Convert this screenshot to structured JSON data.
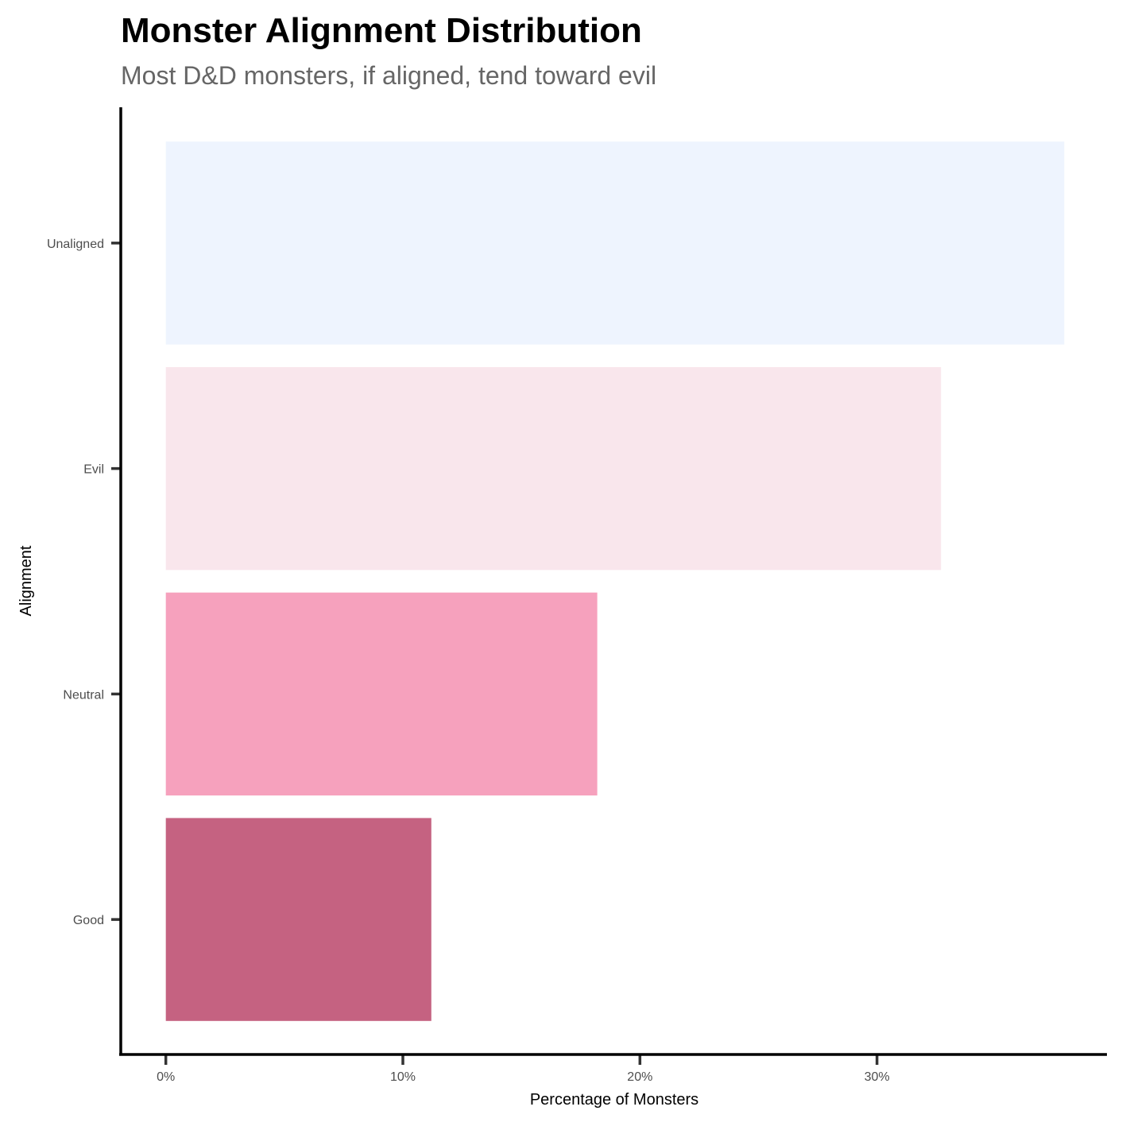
{
  "chart_data": {
    "type": "bar",
    "orientation": "horizontal",
    "title": "Monster Alignment Distribution",
    "subtitle": "Most D&D monsters, if aligned, tend toward evil",
    "xlabel": "Percentage of Monsters",
    "ylabel": "Alignment",
    "categories": [
      "Unaligned",
      "Evil",
      "Neutral",
      "Good"
    ],
    "values": [
      37.9,
      32.7,
      18.2,
      11.2
    ],
    "colors": [
      "#eef4fe",
      "#f9e6ec",
      "#f6a1bd",
      "#c56281"
    ],
    "x_ticks": [
      0,
      10,
      20,
      30
    ],
    "x_tick_labels": [
      "0%",
      "10%",
      "20%",
      "30%"
    ],
    "xlim": [
      -1.9,
      39.7
    ],
    "grid": false,
    "legend": "none"
  }
}
